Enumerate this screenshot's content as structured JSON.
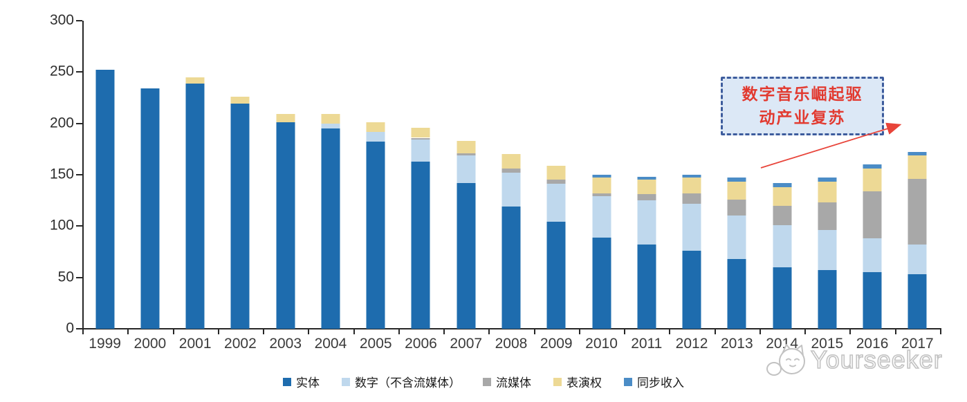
{
  "chart_data": {
    "type": "bar",
    "stacked": true,
    "title": "",
    "xlabel": "",
    "ylabel": "",
    "categories": [
      "1999",
      "2000",
      "2001",
      "2002",
      "2003",
      "2004",
      "2005",
      "2006",
      "2007",
      "2008",
      "2009",
      "2010",
      "2011",
      "2012",
      "2013",
      "2014",
      "2015",
      "2016",
      "2017"
    ],
    "series": [
      {
        "name": "实体",
        "color": "#1e6cae",
        "values": [
          252,
          234,
          239,
          219,
          201,
          195,
          182,
          163,
          142,
          119,
          104,
          89,
          82,
          76,
          68,
          60,
          57,
          55,
          53
        ]
      },
      {
        "name": "数字（不含流媒体）",
        "color": "#bfd8ed",
        "values": [
          0,
          0,
          0,
          0,
          0,
          5,
          10,
          21,
          27,
          33,
          37,
          40,
          43,
          46,
          42,
          41,
          39,
          33,
          29
        ]
      },
      {
        "name": "流媒体",
        "color": "#a8a8a8",
        "values": [
          0,
          0,
          0,
          0,
          0,
          0,
          0,
          2,
          2,
          4,
          4,
          3,
          6,
          10,
          16,
          19,
          27,
          46,
          64
        ]
      },
      {
        "name": "表演权",
        "color": "#edd995",
        "values": [
          0,
          0,
          6,
          7,
          8,
          9,
          9,
          10,
          12,
          14,
          14,
          15,
          14,
          15,
          17,
          18,
          20,
          22,
          23
        ]
      },
      {
        "name": "同步收入",
        "color": "#4b8cc6",
        "values": [
          0,
          0,
          0,
          0,
          0,
          0,
          0,
          0,
          0,
          0,
          0,
          3,
          3,
          3,
          4,
          4,
          4,
          4,
          3
        ]
      }
    ],
    "ylim": [
      0,
      300
    ],
    "yticks": [
      0,
      50,
      100,
      150,
      200,
      250,
      300
    ],
    "grid": false,
    "legend_position": "bottom"
  },
  "annotation": {
    "line1": "数字音乐崛起驱",
    "line2": "动产业复苏",
    "text_color": "#e23a30",
    "box_fill": "#dce8f6",
    "box_border": "#3d5c9d",
    "arrow_color": "#e8443a"
  },
  "watermark": {
    "text": "Yourseeker"
  }
}
